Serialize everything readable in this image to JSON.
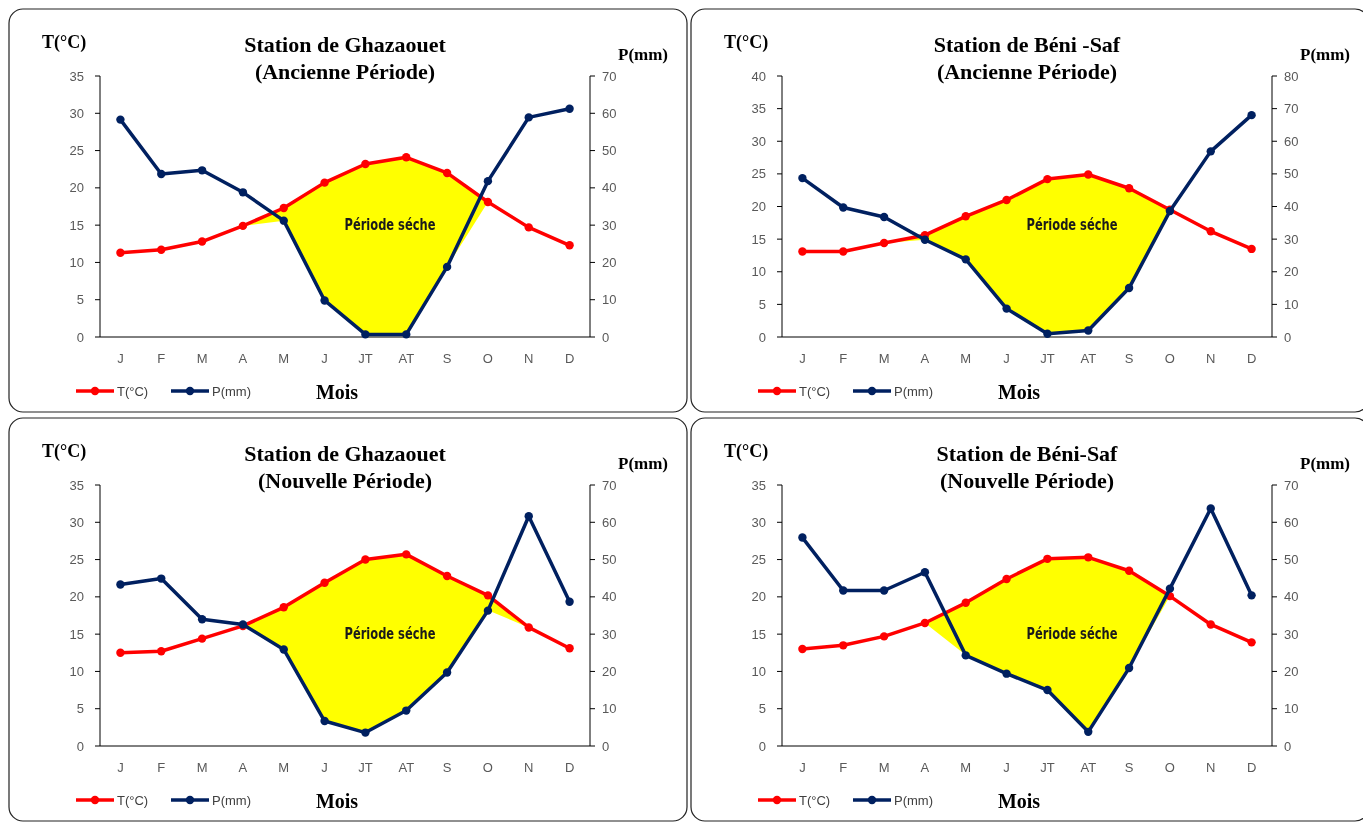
{
  "chart_data": [
    {
      "type": "line",
      "title": "Station de Ghazaouet",
      "subtitle": "(Ancienne Période)",
      "xlabel": "Mois",
      "ylabel": "T(°C)",
      "y2label": "P(mm)",
      "categories": [
        "J",
        "F",
        "M",
        "A",
        "M",
        "J",
        "JT",
        "AT",
        "S",
        "O",
        "N",
        "D"
      ],
      "series": [
        {
          "name": "T(°C)",
          "color": "#ff0000",
          "values": [
            11.3,
            11.7,
            12.8,
            14.9,
            17.3,
            20.7,
            23.2,
            24.1,
            22.0,
            18.1,
            14.7,
            12.3
          ],
          "upper": [
            null,
            null,
            null,
            14.9,
            17.3,
            20.7,
            23.2,
            24.1,
            22.0,
            18.1,
            null,
            null
          ],
          "lower": [
            null,
            null,
            null,
            14.9,
            15.6,
            4.9,
            0.4,
            0.4,
            9.4,
            18.1,
            null,
            null
          ]
        },
        {
          "name": "P(mm)",
          "color": "#002060",
          "axis": "y2",
          "values": [
            58.3,
            43.7,
            44.7,
            38.8,
            31.2,
            9.8,
            0.7,
            0.7,
            18.8,
            41.8,
            58.9,
            61.2
          ]
        }
      ],
      "ylim": [
        0,
        35
      ],
      "yticks": [
        0,
        5,
        10,
        15,
        20,
        25,
        30,
        35
      ],
      "y2lim": [
        0,
        70
      ],
      "y2ticks": [
        0,
        10,
        20,
        30,
        40,
        50,
        60,
        70
      ],
      "annotations": [
        "Période séche"
      ],
      "marker": "circle",
      "legend": "bottom left",
      "grid": false
    },
    {
      "type": "line",
      "title": "Station de Béni -Saf",
      "subtitle": "(Ancienne Période)",
      "xlabel": "Mois",
      "ylabel": "T(°C)",
      "y2label": "P(mm)",
      "categories": [
        "J",
        "F",
        "M",
        "A",
        "M",
        "J",
        "JT",
        "AT",
        "S",
        "O",
        "N",
        "D"
      ],
      "series": [
        {
          "name": "T(°C)",
          "color": "#ff0000",
          "values": [
            13.1,
            13.1,
            14.4,
            15.6,
            18.5,
            21.0,
            24.2,
            24.9,
            22.8,
            19.5,
            16.2,
            13.5
          ],
          "upper": [
            null,
            null,
            14.4,
            15.6,
            18.5,
            21.0,
            24.2,
            24.9,
            22.8,
            19.5,
            16.2,
            null
          ],
          "lower": [
            null,
            null,
            14.4,
            14.9,
            11.9,
            4.3,
            0.5,
            1.0,
            7.5,
            19.3,
            16.2,
            null
          ]
        },
        {
          "name": "P(mm)",
          "color": "#002060",
          "axis": "y2",
          "values": [
            48.7,
            39.7,
            36.8,
            29.8,
            23.8,
            8.7,
            1.0,
            2.0,
            15.0,
            38.6,
            56.9,
            68.0
          ]
        }
      ],
      "ylim": [
        0,
        40
      ],
      "yticks": [
        0,
        5,
        10,
        15,
        20,
        25,
        30,
        35,
        40
      ],
      "y2lim": [
        0,
        80
      ],
      "y2ticks": [
        0,
        10,
        20,
        30,
        40,
        50,
        60,
        70,
        80
      ],
      "annotations": [
        "Période séche"
      ],
      "marker": "circle",
      "legend": "bottom left",
      "grid": false
    },
    {
      "type": "line",
      "title": "Station de Ghazaouet",
      "subtitle": "(Nouvelle Période)",
      "xlabel": "Mois",
      "ylabel": "T(°C)",
      "y2label": "P(mm)",
      "categories": [
        "J",
        "F",
        "M",
        "A",
        "M",
        "J",
        "JT",
        "AT",
        "S",
        "O",
        "N",
        "D"
      ],
      "series": [
        {
          "name": "T(°C)",
          "color": "#ff0000",
          "values": [
            12.5,
            12.7,
            14.4,
            16.1,
            18.6,
            21.9,
            25.0,
            25.7,
            22.8,
            20.2,
            15.9,
            13.1
          ],
          "upper": [
            null,
            null,
            null,
            16.1,
            18.6,
            21.9,
            25.0,
            25.7,
            22.8,
            20.2,
            15.9,
            null
          ],
          "lower": [
            null,
            null,
            null,
            16.1,
            13.0,
            3.4,
            1.8,
            4.8,
            9.9,
            18.2,
            15.9,
            null
          ]
        },
        {
          "name": "P(mm)",
          "color": "#002060",
          "axis": "y2",
          "values": [
            43.3,
            44.9,
            34.0,
            32.6,
            25.9,
            6.7,
            3.6,
            9.5,
            19.7,
            36.3,
            61.6,
            38.7
          ]
        }
      ],
      "ylim": [
        0,
        35
      ],
      "yticks": [
        0,
        5,
        10,
        15,
        20,
        25,
        30,
        35
      ],
      "y2lim": [
        0,
        70
      ],
      "y2ticks": [
        0,
        10,
        20,
        30,
        40,
        50,
        60,
        70
      ],
      "annotations": [
        "Période séche"
      ],
      "marker": "circle",
      "legend": "bottom left",
      "grid": false
    },
    {
      "type": "line",
      "title": "Station de Béni-Saf",
      "subtitle": "(Nouvelle Période)",
      "xlabel": "Mois",
      "ylabel": "T(°C)",
      "y2label": "P(mm)",
      "categories": [
        "J",
        "F",
        "M",
        "A",
        "M",
        "J",
        "JT",
        "AT",
        "S",
        "O",
        "N",
        "D"
      ],
      "series": [
        {
          "name": "T(°C)",
          "color": "#ff0000",
          "values": [
            13.0,
            13.5,
            14.7,
            16.5,
            19.2,
            22.4,
            25.1,
            25.3,
            23.5,
            20.1,
            16.3,
            13.9
          ],
          "upper": [
            null,
            null,
            null,
            16.5,
            19.2,
            22.4,
            25.1,
            25.3,
            23.5,
            20.1,
            null,
            null
          ],
          "lower": [
            null,
            null,
            null,
            16.5,
            12.2,
            9.7,
            7.5,
            1.9,
            10.5,
            20.1,
            null,
            null
          ]
        },
        {
          "name": "P(mm)",
          "color": "#002060",
          "axis": "y2",
          "values": [
            55.9,
            41.7,
            41.7,
            46.6,
            24.3,
            19.4,
            15.0,
            3.8,
            20.9,
            42.2,
            63.7,
            40.4
          ]
        }
      ],
      "ylim": [
        0,
        35
      ],
      "yticks": [
        0,
        5,
        10,
        15,
        20,
        25,
        30,
        35
      ],
      "y2lim": [
        0,
        70
      ],
      "y2ticks": [
        0,
        10,
        20,
        30,
        40,
        50,
        60,
        70
      ],
      "annotations": [
        "Période séche"
      ],
      "marker": "circle",
      "legend": "bottom left",
      "grid": false
    }
  ]
}
